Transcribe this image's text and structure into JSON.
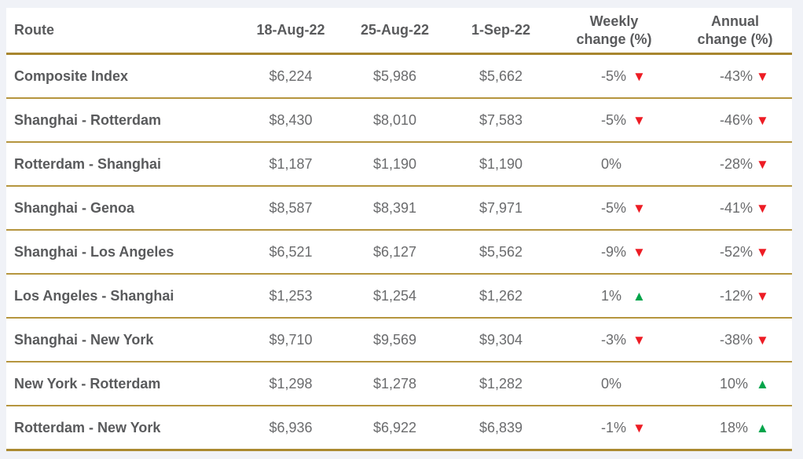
{
  "page": {
    "background": "#f0f2f7"
  },
  "table": {
    "headers": [
      "Route",
      "18-Aug-22",
      "25-Aug-22",
      "1-Sep-22",
      "Weekly change (%)",
      "Annual change (%)"
    ],
    "rows": [
      {
        "route": "Composite Index",
        "rates": [
          "$6,224",
          "$5,986",
          "$5,662"
        ],
        "weekly": {
          "label": "-5%",
          "trend": "down"
        },
        "annual": {
          "label": "-43%",
          "trend": "down"
        }
      },
      {
        "route": "Shanghai - Rotterdam",
        "rates": [
          "$8,430",
          "$8,010",
          "$7,583"
        ],
        "weekly": {
          "label": "-5%",
          "trend": "down"
        },
        "annual": {
          "label": "-46%",
          "trend": "down"
        }
      },
      {
        "route": "Rotterdam - Shanghai",
        "rates": [
          "$1,187",
          "$1,190",
          "$1,190"
        ],
        "weekly": {
          "label": "0%",
          "trend": "none"
        },
        "annual": {
          "label": "-28%",
          "trend": "down"
        }
      },
      {
        "route": "Shanghai - Genoa",
        "rates": [
          "$8,587",
          "$8,391",
          "$7,971"
        ],
        "weekly": {
          "label": "-5%",
          "trend": "down"
        },
        "annual": {
          "label": "-41%",
          "trend": "down"
        }
      },
      {
        "route": "Shanghai - Los Angeles",
        "rates": [
          "$6,521",
          "$6,127",
          "$5,562"
        ],
        "weekly": {
          "label": "-9%",
          "trend": "down"
        },
        "annual": {
          "label": "-52%",
          "trend": "down"
        }
      },
      {
        "route": "Los Angeles - Shanghai",
        "rates": [
          "$1,253",
          "$1,254",
          "$1,262"
        ],
        "weekly": {
          "label": "1%",
          "trend": "up"
        },
        "annual": {
          "label": "-12%",
          "trend": "down"
        }
      },
      {
        "route": "Shanghai - New York",
        "rates": [
          "$9,710",
          "$9,569",
          "$9,304"
        ],
        "weekly": {
          "label": "-3%",
          "trend": "down"
        },
        "annual": {
          "label": "-38%",
          "trend": "down"
        }
      },
      {
        "route": "New York - Rotterdam",
        "rates": [
          "$1,298",
          "$1,278",
          "$1,282"
        ],
        "weekly": {
          "label": "0%",
          "trend": "none"
        },
        "annual": {
          "label": "10%",
          "trend": "up"
        }
      },
      {
        "route": "Rotterdam - New York",
        "rates": [
          "$6,936",
          "$6,922",
          "$6,839"
        ],
        "weekly": {
          "label": "-1%",
          "trend": "down"
        },
        "annual": {
          "label": "18%",
          "trend": "up"
        }
      }
    ]
  },
  "icons": {
    "up-triangle": "▲",
    "down-triangle": "▼",
    "none": ""
  },
  "colors": {
    "accent_line": "#b5953e",
    "header_line": "#a8862f",
    "text_bold": "#595a5c",
    "text_value": "#6a6b6d",
    "up_green": "#00a44a",
    "down_red": "#ed1c24",
    "page_background": "#f0f2f7",
    "table_background": "#ffffff"
  },
  "chart_data": {
    "type": "table",
    "title": "",
    "columns": [
      "Route",
      "18-Aug-22",
      "25-Aug-22",
      "1-Sep-22",
      "Weekly change (%)",
      "Annual change (%)"
    ],
    "rows": [
      [
        "Composite Index",
        6224,
        5986,
        5662,
        -5,
        -43
      ],
      [
        "Shanghai - Rotterdam",
        8430,
        8010,
        7583,
        -5,
        -46
      ],
      [
        "Rotterdam - Shanghai",
        1187,
        1190,
        1190,
        0,
        -28
      ],
      [
        "Shanghai - Genoa",
        8587,
        8391,
        7971,
        -5,
        -41
      ],
      [
        "Shanghai - Los Angeles",
        6521,
        6127,
        5562,
        -9,
        -52
      ],
      [
        "Los Angeles - Shanghai",
        1253,
        1254,
        1262,
        1,
        -12
      ],
      [
        "Shanghai - New York",
        9710,
        9569,
        9304,
        -3,
        -38
      ],
      [
        "New York - Rotterdam",
        1298,
        1278,
        1282,
        0,
        10
      ],
      [
        "Rotterdam - New York",
        6936,
        6922,
        6839,
        -1,
        18
      ]
    ],
    "value_unit": "USD",
    "change_unit": "percent",
    "grid": "horizontal-rules-only",
    "legend": "none"
  }
}
